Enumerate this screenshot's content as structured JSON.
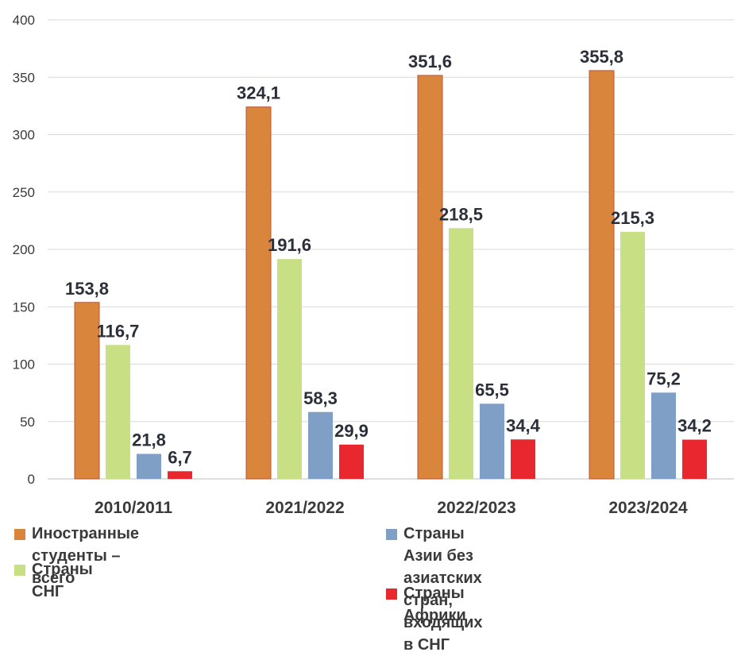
{
  "chart_data": {
    "type": "bar",
    "categories": [
      "2010/2011",
      "2021/2022",
      "2022/2023",
      "2023/2024"
    ],
    "series": [
      {
        "name": "Иностранные студенты – всего",
        "values": [
          153.8,
          324.1,
          351.6,
          355.8
        ],
        "labels": [
          "153,8",
          "324,1",
          "351,6",
          "355,8"
        ],
        "color": "#d9853b"
      },
      {
        "name": "Страны СНГ",
        "values": [
          116.7,
          191.6,
          218.5,
          215.3
        ],
        "labels": [
          "116,7",
          "191,6",
          "218,5",
          "215,3"
        ],
        "color": "#c8df84"
      },
      {
        "name": "Страны Азии без азиатских стран, входящих в СНГ",
        "values": [
          21.8,
          58.3,
          65.5,
          75.2
        ],
        "labels": [
          "21,8",
          "58,3",
          "65,5",
          "75,2"
        ],
        "color": "#7f9fc6"
      },
      {
        "name": "Страны Африки",
        "values": [
          6.7,
          29.9,
          34.4,
          34.2
        ],
        "labels": [
          "6,7",
          "29,9",
          "34,4",
          "34,2"
        ],
        "color": "#e8282e"
      }
    ],
    "y_ticks": [
      "0",
      "50",
      "100",
      "150",
      "200",
      "250",
      "300",
      "350",
      "400"
    ],
    "ylim": [
      0,
      400
    ],
    "title": "",
    "xlabel": "",
    "ylabel": "",
    "grid": true,
    "legend_position": "bottom"
  },
  "legend": {
    "total": {
      "line1": "Иностранные студенты – всего"
    },
    "cis": {
      "line1": "Страны СНГ"
    },
    "asia": {
      "line1": "Страны Азии без азиатских стран,",
      "line2": "входящих в СНГ"
    },
    "africa": {
      "line1": "Страны Африки"
    }
  }
}
